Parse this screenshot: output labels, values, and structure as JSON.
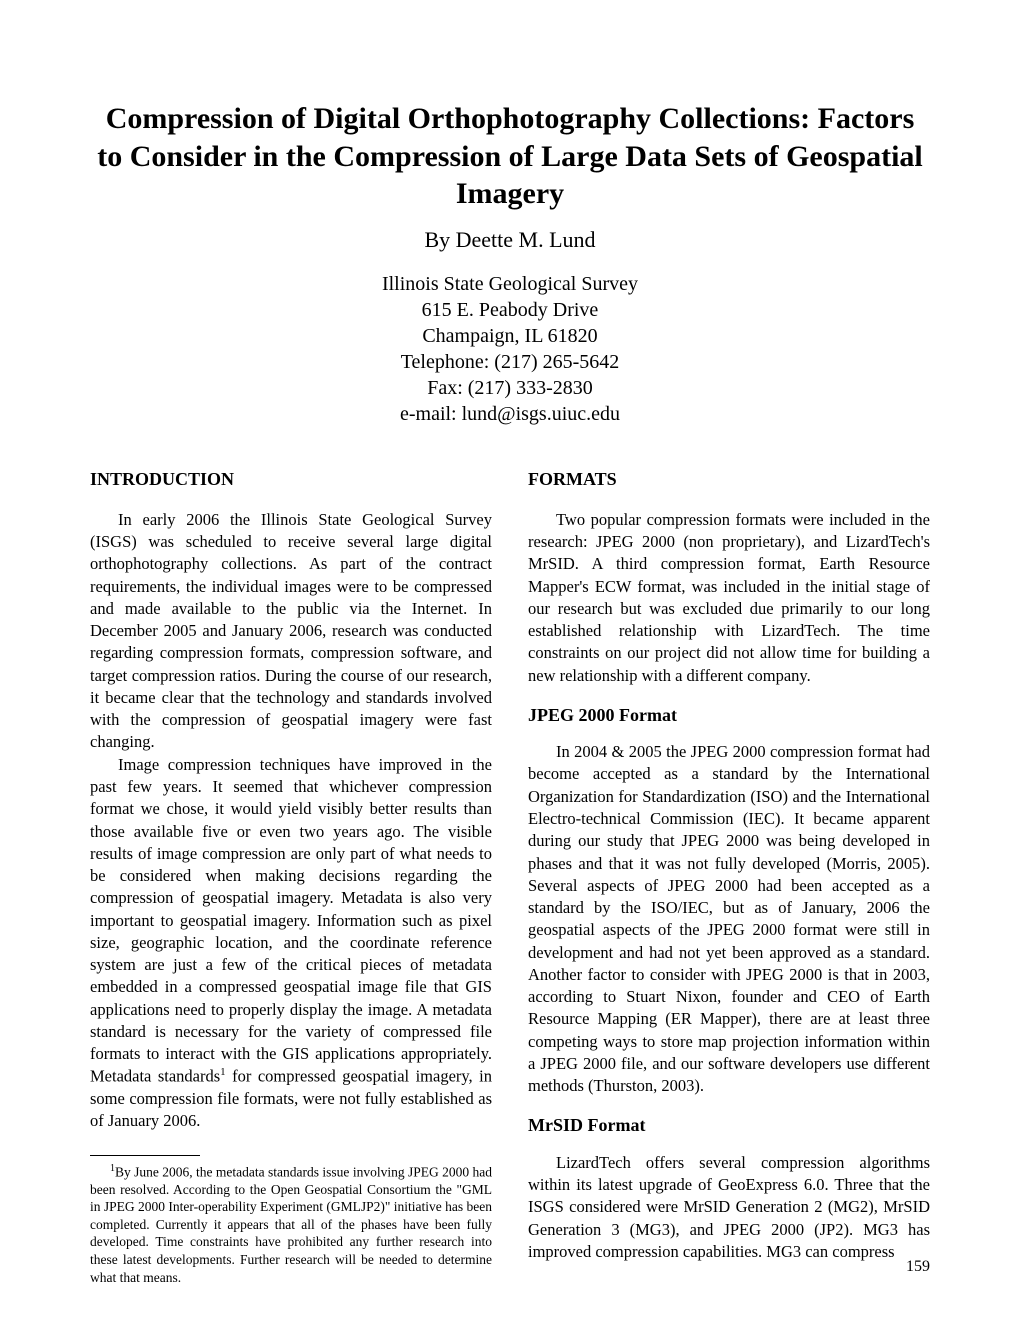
{
  "title": "Compression of Digital Orthophotography Collections: Factors to Consider in the Compression of Large Data Sets of Geospatial Imagery",
  "author": "By Deette M. Lund",
  "affiliation": {
    "org": "Illinois State Geological Survey",
    "street": "615 E. Peabody Drive",
    "city": "Champaign, IL 61820",
    "phone": "Telephone: (217) 265-5642",
    "fax": "Fax: (217) 333-2830",
    "email": "e-mail: lund@isgs.uiuc.edu"
  },
  "left": {
    "heading": "INTRODUCTION",
    "p1": "In early 2006 the Illinois State Geological Survey (ISGS) was scheduled to receive several large digital orthophotography collections. As part of the contract requirements, the individual images were to be compressed and made available to the public via the Internet. In December 2005 and January 2006, research was conducted regarding compression formats, compression software, and target compression ratios. During the course of our research, it became clear that the technology and standards involved with the compression of geospatial imagery were fast changing.",
    "p2a": "Image compression techniques have improved in the past few years. It seemed that whichever compression format we chose, it would yield visibly better results than those available five or even two years ago. The visible results of image compression are only part of what needs to be considered when making decisions regarding the compression of geospatial imagery. Metadata is also very important to geospatial imagery. Information such as pixel size, geographic location, and the coordinate reference system are just a few of the critical pieces of metadata embedded in a compressed geospatial image file that GIS applications need to properly display the image. A metadata standard is necessary for the variety of compressed file formats to interact with the GIS applications appropriately. Metadata standards",
    "p2b": " for compressed geospatial imagery, in some compression file formats, were not fully established as of January 2006.",
    "footnote_marker": "1",
    "footnote": "By June 2006, the metadata standards issue involving JPEG 2000 had been resolved. According to the Open Geospatial Consortium the \"GML in JPEG 2000 Inter-operability Experiment (GMLJP2)\" initiative has been completed. Currently it appears that all of the phases have been fully developed. Time constraints have prohibited any further research into these latest developments. Further research will be needed to determine what that means."
  },
  "right": {
    "heading": "FORMATS",
    "p1": "Two popular compression formats were included in the research: JPEG 2000 (non proprietary), and LizardTech's MrSID. A third compression format, Earth Resource Mapper's ECW format, was included in the initial stage of our research but was excluded due primarily to our long established relationship with LizardTech. The time constraints on our project did not allow time for building a new relationship with a different company.",
    "sub1": "JPEG 2000 Format",
    "p2": "In 2004 & 2005 the JPEG 2000 compression format had become accepted as a standard by the International Organization for Standardization (ISO) and the International Electro-technical Commission (IEC). It became apparent during our study that JPEG 2000 was being developed in phases and that it was not fully developed (Morris, 2005). Several aspects of JPEG 2000 had been accepted as a standard by the ISO/IEC, but as of January, 2006 the geospatial aspects of the JPEG 2000 format were still in development and had not yet been approved as a standard. Another factor to consider with JPEG 2000 is that in 2003, according to Stuart Nixon, founder and CEO of Earth Resource Mapping (ER Mapper), there are at least three competing ways to store map projection information within a JPEG 2000 file, and our software developers use different methods (Thurston, 2003).",
    "sub2": "MrSID Format",
    "p3": "LizardTech offers several compression algorithms within its latest upgrade of GeoExpress 6.0. Three that the ISGS considered were MrSID Generation 2 (MG2), MrSID Generation 3 (MG3), and JPEG 2000 (JP2). MG3 has improved compression capabilities. MG3 can compress"
  },
  "pagenum": "159"
}
